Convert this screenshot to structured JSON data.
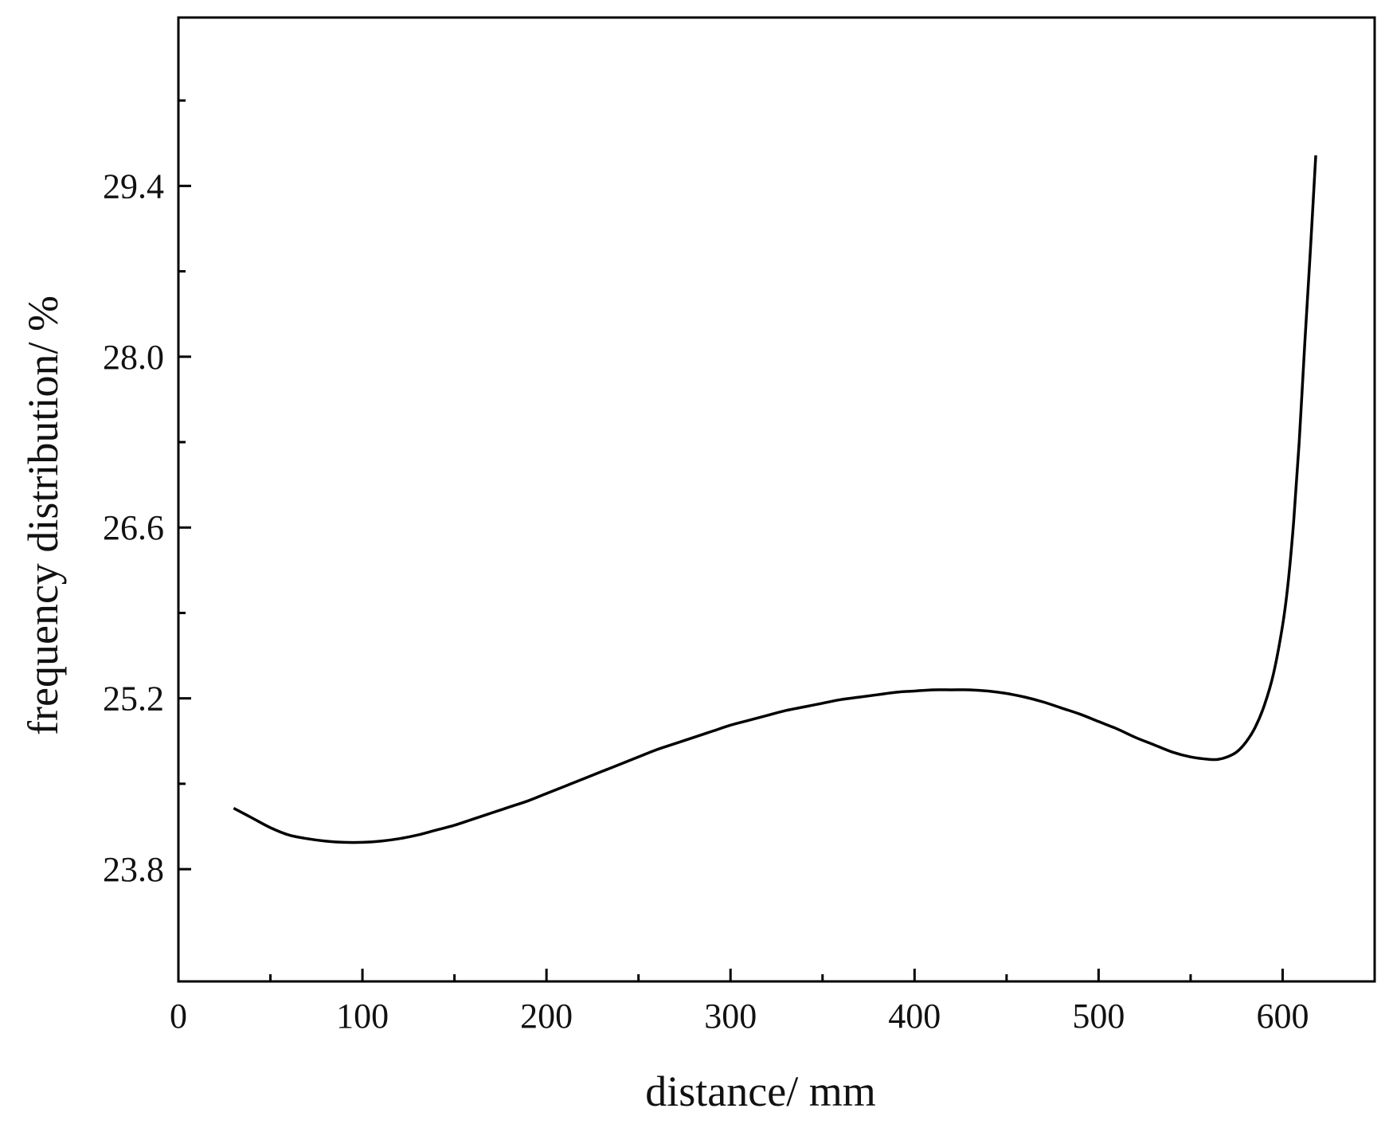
{
  "chart_data": {
    "type": "line",
    "title": "",
    "xlabel": "distance/ mm",
    "ylabel": "frequency distribution/ %",
    "xlim": [
      0,
      650
    ],
    "ylim": [
      22.88,
      30.78
    ],
    "x_ticks": [
      0,
      100,
      200,
      300,
      400,
      500,
      600
    ],
    "x_tick_labels": [
      "0",
      "100",
      "200",
      "300",
      "400",
      "500",
      "600"
    ],
    "x_minor_ticks": [
      50,
      150,
      250,
      350,
      450,
      550
    ],
    "y_ticks": [
      23.8,
      25.2,
      26.6,
      28.0,
      29.4
    ],
    "y_tick_labels": [
      "23.8",
      "25.2",
      "26.6",
      "28.0",
      "29.4"
    ],
    "y_minor_ticks": [
      24.5,
      25.9,
      27.3,
      28.7,
      30.1
    ],
    "grid": false,
    "legend": "none",
    "line_color": "#000000",
    "series": [
      {
        "x": [
          30,
          40,
          50,
          60,
          70,
          80,
          90,
          100,
          110,
          120,
          130,
          140,
          150,
          160,
          170,
          180,
          190,
          200,
          210,
          220,
          230,
          240,
          250,
          260,
          270,
          280,
          290,
          300,
          310,
          320,
          330,
          340,
          350,
          360,
          370,
          380,
          390,
          400,
          410,
          420,
          430,
          440,
          450,
          460,
          470,
          480,
          490,
          500,
          510,
          520,
          530,
          540,
          550,
          560,
          565,
          570,
          575,
          580,
          585,
          590,
          595,
          600,
          603,
          606,
          609,
          612,
          615,
          618
        ],
        "y": [
          24.3,
          24.22,
          24.14,
          24.08,
          24.05,
          24.03,
          24.02,
          24.02,
          24.03,
          24.05,
          24.08,
          24.12,
          24.16,
          24.21,
          24.26,
          24.31,
          24.36,
          24.42,
          24.48,
          24.54,
          24.6,
          24.66,
          24.72,
          24.78,
          24.83,
          24.88,
          24.93,
          24.98,
          25.02,
          25.06,
          25.1,
          25.13,
          25.16,
          25.19,
          25.21,
          25.23,
          25.25,
          25.26,
          25.27,
          25.27,
          25.27,
          25.26,
          25.24,
          25.21,
          25.17,
          25.12,
          25.07,
          25.01,
          24.95,
          24.88,
          24.82,
          24.76,
          24.72,
          24.7,
          24.7,
          24.72,
          24.76,
          24.84,
          24.96,
          25.14,
          25.4,
          25.8,
          26.15,
          26.65,
          27.3,
          28.1,
          28.85,
          29.65
        ]
      }
    ]
  }
}
